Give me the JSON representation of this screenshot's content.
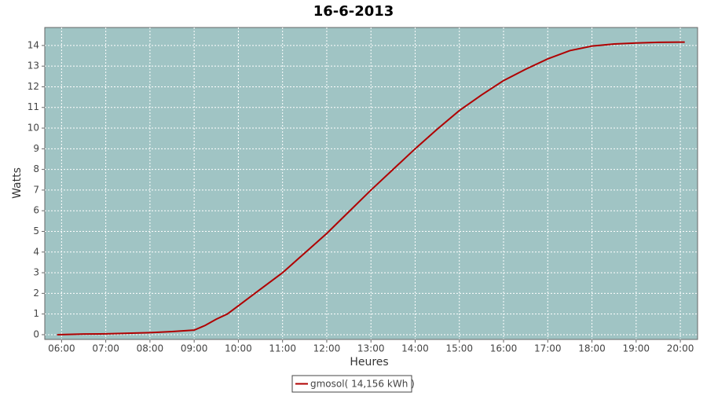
{
  "chart_data": {
    "type": "line",
    "title": "16-6-2013",
    "x_label": "Heures",
    "y_label": "Watts",
    "x": [
      5.9,
      6.5,
      7.0,
      7.5,
      8.0,
      8.5,
      9.0,
      9.25,
      9.5,
      9.75,
      10.0,
      10.5,
      11.0,
      11.5,
      12.0,
      12.5,
      13.0,
      13.5,
      14.0,
      14.5,
      15.0,
      15.5,
      16.0,
      16.5,
      17.0,
      17.5,
      18.0,
      18.5,
      19.0,
      19.5,
      20.0,
      20.1
    ],
    "series": [
      {
        "name": "gmosol( 14,156 kWh )",
        "color": "#b00000",
        "values": [
          0,
          0.03,
          0.04,
          0.07,
          0.1,
          0.15,
          0.22,
          0.45,
          0.75,
          1.0,
          1.4,
          2.2,
          3.0,
          3.95,
          4.9,
          5.95,
          7.0,
          8.0,
          9.0,
          9.95,
          10.85,
          11.6,
          12.3,
          12.85,
          13.35,
          13.75,
          13.97,
          14.07,
          14.12,
          14.15,
          14.16,
          14.16
        ]
      }
    ],
    "xlim": [
      5.62,
      20.39
    ],
    "ylim": [
      -0.23,
      14.87
    ],
    "xticks": [
      {
        "value": 6,
        "label": "06:00"
      },
      {
        "value": 7,
        "label": "07:00"
      },
      {
        "value": 8,
        "label": "08:00"
      },
      {
        "value": 9,
        "label": "09:00"
      },
      {
        "value": 10,
        "label": "10:00"
      },
      {
        "value": 11,
        "label": "11:00"
      },
      {
        "value": 12,
        "label": "12:00"
      },
      {
        "value": 13,
        "label": "13:00"
      },
      {
        "value": 14,
        "label": "14:00"
      },
      {
        "value": 15,
        "label": "15:00"
      },
      {
        "value": 16,
        "label": "16:00"
      },
      {
        "value": 17,
        "label": "17:00"
      },
      {
        "value": 18,
        "label": "18:00"
      },
      {
        "value": 19,
        "label": "19:00"
      },
      {
        "value": 20,
        "label": "20:00"
      }
    ],
    "yticks": [
      0,
      1,
      2,
      3,
      4,
      5,
      6,
      7,
      8,
      9,
      10,
      11,
      12,
      13,
      14
    ],
    "grid": true,
    "plot_background": "#a0c4c4",
    "legend": "bottom"
  }
}
